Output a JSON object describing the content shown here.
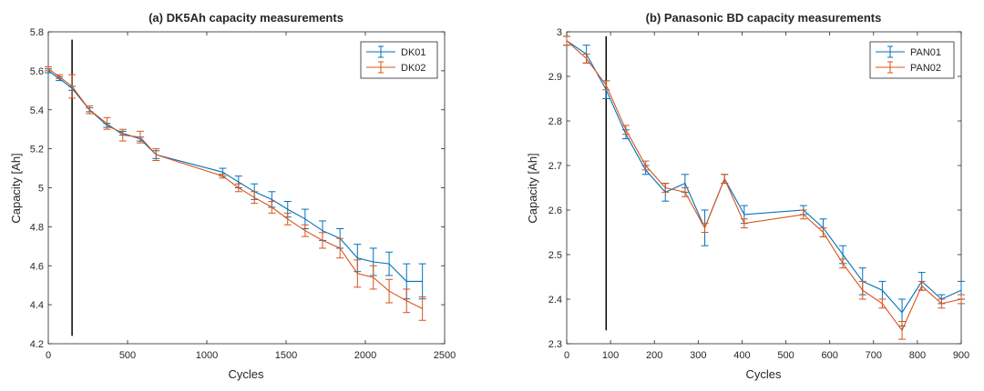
{
  "chart_data": [
    {
      "type": "line",
      "title": "(a) DK5Ah capacity measurements",
      "xlabel": "Cycles",
      "ylabel": "Capacity [Ah]",
      "xlim": [
        0,
        2500
      ],
      "ylim": [
        4.2,
        5.8
      ],
      "xticks": [
        0,
        500,
        1000,
        1500,
        2000,
        2500
      ],
      "yticks": [
        4.2,
        4.4,
        4.6,
        4.8,
        5,
        5.2,
        5.4,
        5.6,
        5.8
      ],
      "xtick_labels": [
        "0",
        "500",
        "1000",
        "1500",
        "2000",
        "2500"
      ],
      "ytick_labels": [
        "4.2",
        "4.4",
        "4.6",
        "4.8",
        "5",
        "5.2",
        "5.4",
        "5.6",
        "5.8"
      ],
      "grid": false,
      "legend_position": "top-right",
      "vertical_line": {
        "x": 150,
        "y_from": 4.24,
        "y_to": 5.76
      },
      "series": [
        {
          "name": "DK01",
          "color": "#0072BD",
          "x": [
            0,
            70,
            150,
            260,
            370,
            470,
            580,
            680,
            1100,
            1200,
            1300,
            1410,
            1510,
            1620,
            1730,
            1840,
            1950,
            2050,
            2150,
            2260,
            2360
          ],
          "y": [
            5.6,
            5.56,
            5.51,
            5.4,
            5.32,
            5.28,
            5.25,
            5.17,
            5.08,
            5.03,
            4.98,
            4.94,
            4.89,
            4.84,
            4.78,
            4.74,
            4.64,
            4.62,
            4.61,
            4.52,
            4.52
          ],
          "err": [
            0.01,
            0.01,
            0.01,
            0.01,
            0.01,
            0.01,
            0.01,
            0.02,
            0.02,
            0.03,
            0.04,
            0.04,
            0.04,
            0.05,
            0.05,
            0.05,
            0.07,
            0.07,
            0.06,
            0.09,
            0.09
          ]
        },
        {
          "name": "DK02",
          "color": "#D95319",
          "x": [
            0,
            70,
            150,
            260,
            370,
            470,
            580,
            680,
            1100,
            1200,
            1300,
            1410,
            1510,
            1620,
            1730,
            1840,
            1950,
            2050,
            2150,
            2260,
            2360
          ],
          "y": [
            5.61,
            5.57,
            5.52,
            5.4,
            5.33,
            5.27,
            5.26,
            5.17,
            5.06,
            5.0,
            4.95,
            4.9,
            4.84,
            4.78,
            4.73,
            4.69,
            4.56,
            4.54,
            4.47,
            4.42,
            4.38
          ],
          "err": [
            0.01,
            0.01,
            0.06,
            0.02,
            0.03,
            0.03,
            0.03,
            0.03,
            0.01,
            0.02,
            0.03,
            0.03,
            0.03,
            0.03,
            0.04,
            0.05,
            0.07,
            0.06,
            0.06,
            0.06,
            0.06
          ]
        }
      ]
    },
    {
      "type": "line",
      "title": "(b) Panasonic BD capacity measurements",
      "xlabel": "Cycles",
      "ylabel": "Capacity [Ah]",
      "xlim": [
        0,
        900
      ],
      "ylim": [
        2.3,
        3.0
      ],
      "xticks": [
        0,
        100,
        200,
        300,
        400,
        500,
        600,
        700,
        800,
        900
      ],
      "yticks": [
        2.3,
        2.4,
        2.5,
        2.6,
        2.7,
        2.8,
        2.9,
        3.0
      ],
      "xtick_labels": [
        "0",
        "100",
        "200",
        "300",
        "400",
        "500",
        "600",
        "700",
        "800",
        "900"
      ],
      "ytick_labels": [
        "2.3",
        "2.4",
        "2.5",
        "2.6",
        "2.7",
        "2.8",
        "2.9",
        "3"
      ],
      "grid": false,
      "legend_position": "top-right",
      "vertical_line": {
        "x": 90,
        "y_from": 2.33,
        "y_to": 2.99
      },
      "series": [
        {
          "name": "PAN01",
          "color": "#0072BD",
          "x": [
            0,
            45,
            90,
            135,
            180,
            225,
            270,
            315,
            360,
            405,
            540,
            585,
            630,
            675,
            720,
            765,
            810,
            855,
            900
          ],
          "y": [
            2.98,
            2.95,
            2.87,
            2.77,
            2.69,
            2.64,
            2.66,
            2.56,
            2.67,
            2.59,
            2.6,
            2.56,
            2.5,
            2.44,
            2.42,
            2.37,
            2.44,
            2.4,
            2.42
          ],
          "err": [
            0.01,
            0.02,
            0.02,
            0.01,
            0.01,
            0.02,
            0.02,
            0.04,
            0.01,
            0.02,
            0.01,
            0.02,
            0.02,
            0.03,
            0.02,
            0.03,
            0.02,
            0.01,
            0.02
          ]
        },
        {
          "name": "PAN02",
          "color": "#D95319",
          "x": [
            0,
            45,
            90,
            135,
            180,
            225,
            270,
            315,
            360,
            405,
            540,
            585,
            630,
            675,
            720,
            765,
            810,
            855,
            900
          ],
          "y": [
            2.98,
            2.94,
            2.88,
            2.78,
            2.7,
            2.65,
            2.64,
            2.56,
            2.67,
            2.57,
            2.59,
            2.55,
            2.48,
            2.42,
            2.39,
            2.33,
            2.43,
            2.39,
            2.4
          ],
          "err": [
            0.01,
            0.01,
            0.01,
            0.01,
            0.01,
            0.01,
            0.01,
            0.01,
            0.01,
            0.01,
            0.01,
            0.01,
            0.01,
            0.02,
            0.01,
            0.02,
            0.01,
            0.01,
            0.01
          ]
        }
      ]
    }
  ]
}
